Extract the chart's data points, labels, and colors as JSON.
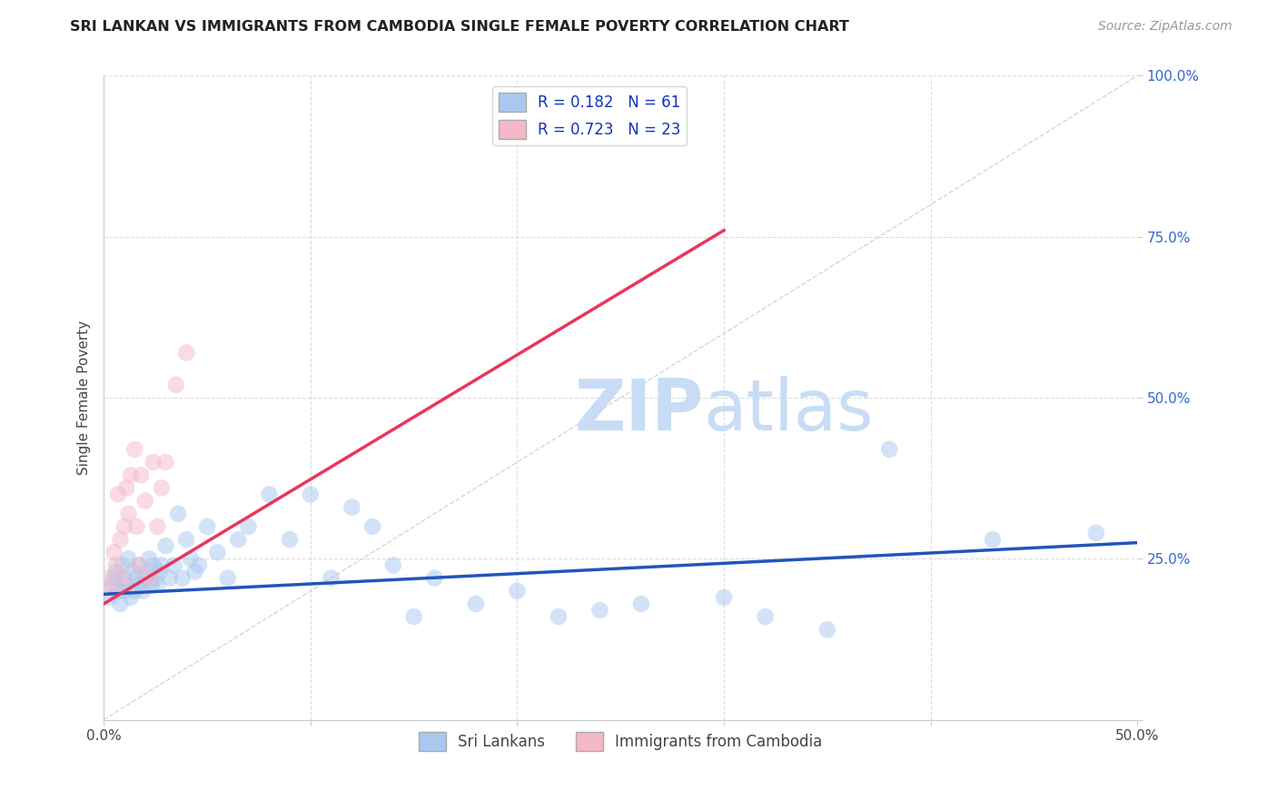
{
  "title": "SRI LANKAN VS IMMIGRANTS FROM CAMBODIA SINGLE FEMALE POVERTY CORRELATION CHART",
  "source": "Source: ZipAtlas.com",
  "ylabel": "Single Female Poverty",
  "xlim": [
    0.0,
    0.5
  ],
  "ylim": [
    0.0,
    1.0
  ],
  "xticks": [
    0.0,
    0.1,
    0.2,
    0.3,
    0.4,
    0.5
  ],
  "xticklabels": [
    "0.0%",
    "",
    "",
    "",
    "",
    "50.0%"
  ],
  "yticks": [
    0.0,
    0.25,
    0.5,
    0.75,
    1.0
  ],
  "yticklabels": [
    "",
    "25.0%",
    "50.0%",
    "75.0%",
    "100.0%"
  ],
  "series1_color": "#a8c8f0",
  "series2_color": "#f5b8c8",
  "trendline1_color": "#2255bb",
  "trendline2_color": "#e8365d",
  "refline_color": "#cccccc",
  "grid_color": "#dddddd",
  "watermark_color": "#c8ddf5",
  "legend_r1": "R = 0.182",
  "legend_n1": "N = 61",
  "legend_r2": "R = 0.723",
  "legend_n2": "N = 23",
  "legend_label1": "Sri Lankans",
  "legend_label2": "Immigrants from Cambodia",
  "sri_x": [
    0.003,
    0.004,
    0.005,
    0.006,
    0.007,
    0.008,
    0.009,
    0.01,
    0.01,
    0.011,
    0.012,
    0.013,
    0.014,
    0.015,
    0.016,
    0.017,
    0.018,
    0.019,
    0.02,
    0.021,
    0.022,
    0.023,
    0.024,
    0.025,
    0.026,
    0.027,
    0.028,
    0.03,
    0.032,
    0.034,
    0.036,
    0.038,
    0.04,
    0.042,
    0.044,
    0.046,
    0.05,
    0.055,
    0.06,
    0.065,
    0.07,
    0.08,
    0.09,
    0.1,
    0.11,
    0.12,
    0.13,
    0.14,
    0.15,
    0.16,
    0.18,
    0.2,
    0.22,
    0.24,
    0.26,
    0.3,
    0.32,
    0.35,
    0.38,
    0.43,
    0.48
  ],
  "sri_y": [
    0.19,
    0.21,
    0.22,
    0.23,
    0.2,
    0.18,
    0.24,
    0.2,
    0.22,
    0.21,
    0.25,
    0.19,
    0.23,
    0.2,
    0.22,
    0.24,
    0.21,
    0.2,
    0.22,
    0.23,
    0.25,
    0.21,
    0.24,
    0.22,
    0.21,
    0.23,
    0.24,
    0.27,
    0.22,
    0.24,
    0.32,
    0.22,
    0.28,
    0.25,
    0.23,
    0.24,
    0.3,
    0.26,
    0.22,
    0.28,
    0.3,
    0.35,
    0.28,
    0.35,
    0.22,
    0.33,
    0.3,
    0.24,
    0.16,
    0.22,
    0.18,
    0.2,
    0.16,
    0.17,
    0.18,
    0.19,
    0.16,
    0.14,
    0.42,
    0.28,
    0.29
  ],
  "cam_x": [
    0.002,
    0.004,
    0.005,
    0.006,
    0.007,
    0.008,
    0.009,
    0.01,
    0.011,
    0.012,
    0.013,
    0.015,
    0.016,
    0.017,
    0.018,
    0.02,
    0.022,
    0.024,
    0.026,
    0.028,
    0.03,
    0.035,
    0.04
  ],
  "cam_y": [
    0.22,
    0.2,
    0.26,
    0.24,
    0.35,
    0.28,
    0.22,
    0.3,
    0.36,
    0.32,
    0.38,
    0.42,
    0.3,
    0.24,
    0.38,
    0.34,
    0.22,
    0.4,
    0.3,
    0.36,
    0.4,
    0.52,
    0.57
  ],
  "trendline1_x0": 0.0,
  "trendline1_x1": 0.5,
  "trendline1_y0": 0.195,
  "trendline1_y1": 0.275,
  "trendline2_x0": 0.0,
  "trendline2_x1": 0.3,
  "trendline2_y0": 0.18,
  "trendline2_y1": 0.76,
  "marker_size": 180,
  "alpha": 0.5
}
